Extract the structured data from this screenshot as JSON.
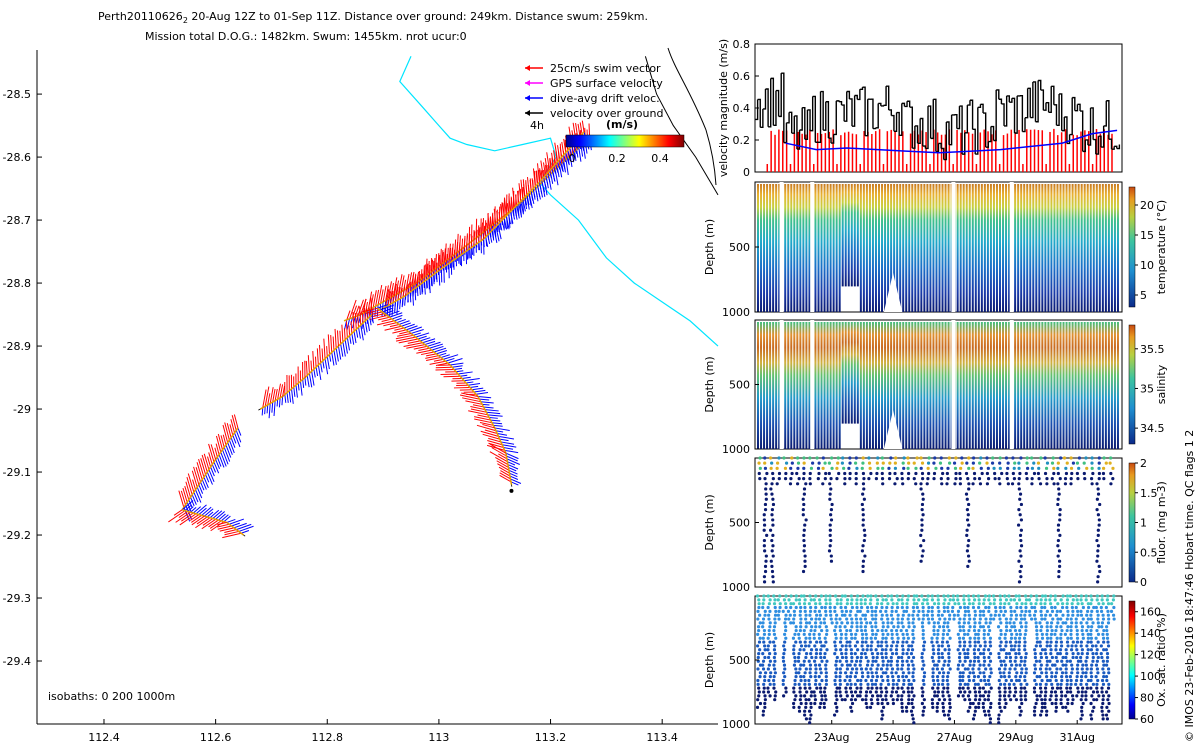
{
  "header": {
    "line1_prefix": "Perth20110626",
    "line1_sub": "2",
    "line1_rest": " 20-Aug 12Z to 01-Sep 11Z. Distance over ground: 249km. Distance swum: 259km.",
    "line2": "Mission total D.O.G.: 1482km. Swum: 1455km. nrot ucur:0"
  },
  "colors": {
    "swim": "#ff0000",
    "gps": "#ff00ff",
    "drift": "#0000ff",
    "ground": "#000000",
    "coast": "#00e5ff",
    "vel_line": "#0000ff",
    "vel_bar": "#ff0000"
  },
  "map_panel": {
    "xticks": [
      "112.4",
      "112.6",
      "112.8",
      "113",
      "113.2",
      "113.4"
    ],
    "yticks": [
      "-28.5",
      "-28.6",
      "-28.7",
      "-28.8",
      "-28.9",
      "-29",
      "-29.1",
      "-29.2",
      "-29.3",
      "-29.4"
    ],
    "legend": [
      {
        "label": "25cm/s swim vector",
        "color": "#ff0000"
      },
      {
        "label": "GPS surface velocity",
        "color": "#ff00ff"
      },
      {
        "label": "dive-avg drift veloc.",
        "color": "#0000ff"
      },
      {
        "label": "velocity over ground",
        "color": "#000000"
      }
    ],
    "time_label": "4h",
    "colorbar_units": "(m/s)",
    "colorbar_ticks": [
      "0",
      "0.2",
      "0.4"
    ],
    "isobath_note": "isobaths: 0   200   1000m"
  },
  "chart_data": [
    {
      "type": "scatter",
      "panel": "glider track map",
      "xlim": [
        112.28,
        113.5
      ],
      "ylim": [
        -29.5,
        -28.43
      ],
      "xticks": [
        112.4,
        112.6,
        112.8,
        113.0,
        113.2,
        113.4
      ],
      "yticks": [
        -28.5,
        -28.6,
        -28.7,
        -28.8,
        -28.9,
        -29.0,
        -29.1,
        -29.2,
        -29.3,
        -29.4
      ],
      "track_segments": [
        {
          "lon": [
            113.27,
            113.22,
            113.15,
            113.05,
            112.96,
            112.9,
            112.86,
            112.83
          ],
          "lat": [
            -28.57,
            -28.61,
            -28.67,
            -28.74,
            -28.8,
            -28.83,
            -28.85,
            -28.86
          ]
        },
        {
          "lon": [
            113.26,
            113.18,
            113.08,
            113.0,
            112.94,
            112.9
          ],
          "lat": [
            -28.56,
            -28.64,
            -28.73,
            -28.78,
            -28.82,
            -28.84
          ]
        },
        {
          "lon": [
            112.89,
            112.95,
            113.02,
            113.07,
            113.1,
            113.12,
            113.13
          ],
          "lat": [
            -28.84,
            -28.88,
            -28.93,
            -28.98,
            -29.03,
            -29.07,
            -29.12
          ]
        },
        {
          "lon": [
            112.88,
            112.82,
            112.76,
            112.72,
            112.68
          ],
          "lat": [
            -28.85,
            -28.9,
            -28.95,
            -28.98,
            -29.0
          ]
        },
        {
          "lon": [
            112.64,
            112.6,
            112.57,
            112.54
          ],
          "lat": [
            -29.03,
            -29.08,
            -29.12,
            -29.16
          ]
        },
        {
          "lon": [
            112.54,
            112.58,
            112.62,
            112.65
          ],
          "lat": [
            -29.16,
            -29.17,
            -29.18,
            -29.2
          ]
        }
      ],
      "coastline": {
        "lon": [
          112.95,
          112.93,
          112.97,
          113.0,
          113.02,
          113.05,
          113.1,
          113.15,
          113.2,
          113.21,
          113.18,
          113.2,
          113.25,
          113.3,
          113.35,
          113.4,
          113.45,
          113.5
        ],
        "lat": [
          -28.44,
          -28.48,
          -28.52,
          -28.55,
          -28.57,
          -28.58,
          -28.59,
          -28.58,
          -28.57,
          -28.6,
          -28.64,
          -28.66,
          -28.7,
          -28.76,
          -28.8,
          -28.83,
          -28.86,
          -28.9
        ]
      },
      "shelf_isobath": {
        "lon": [
          113.37,
          113.39,
          113.42,
          113.46,
          113.5
        ],
        "lat": [
          -28.44,
          -28.5,
          -28.55,
          -28.6,
          -28.66
        ]
      },
      "isobaths_m": [
        0,
        200,
        1000
      ]
    },
    {
      "type": "bar",
      "panel": "velocity magnitude",
      "ylabel": "velocity magnitude (m/s)",
      "ylim": [
        0,
        0.8
      ],
      "yticks": [
        "0",
        "0.2",
        "0.4",
        "0.6",
        "0.8"
      ],
      "days": [
        21.5,
        22.5,
        23.5,
        24.5,
        25.5,
        26.5,
        27.5,
        28.5,
        29.5,
        30.5,
        31.5,
        32.3
      ],
      "ground_speed": [
        0.45,
        0.23,
        0.35,
        0.37,
        0.4,
        0.3,
        0.25,
        0.28,
        0.38,
        0.42,
        0.35,
        0.28
      ],
      "swim_speed": [
        0.25,
        0.25,
        0.25,
        0.25,
        0.25,
        0.25,
        0.25,
        0.25,
        0.25,
        0.25,
        0.25,
        0.25
      ],
      "drift_speed": [
        0.18,
        0.14,
        0.15,
        0.14,
        0.13,
        0.12,
        0.13,
        0.14,
        0.16,
        0.18,
        0.24,
        0.26
      ]
    },
    {
      "type": "heatmap",
      "panel": "temperature",
      "ylabel": "Depth (m)",
      "yticks": [
        "500",
        "1000"
      ],
      "colorbar_label": "temperature (°C)",
      "colorbar_ticks": [
        "5",
        "10",
        "15",
        "20"
      ],
      "clim": [
        3,
        23
      ],
      "max_depth": 1000
    },
    {
      "type": "heatmap",
      "panel": "salinity",
      "ylabel": "Depth (m)",
      "yticks": [
        "500",
        "1000"
      ],
      "colorbar_label": "salinity",
      "colorbar_ticks": [
        "34.5",
        "35",
        "35.5"
      ],
      "clim": [
        34.3,
        35.8
      ],
      "max_depth": 1000
    },
    {
      "type": "scatter",
      "panel": "fluorescence",
      "ylabel": "Depth (m)",
      "yticks": [
        "500",
        "1000"
      ],
      "colorbar_label": "fluor. (mg m-3)",
      "colorbar_ticks": [
        "0",
        "0.5",
        "1",
        "1.5",
        "2"
      ],
      "clim": [
        0,
        2
      ],
      "max_depth": 1000
    },
    {
      "type": "scatter",
      "panel": "oxygen saturation",
      "ylabel": "Depth (m)",
      "yticks": [
        "500",
        "1000"
      ],
      "colorbar_label": "Ox. sat. ratio (%)",
      "colorbar_ticks": [
        "60",
        "80",
        "100",
        "120",
        "140",
        "160"
      ],
      "clim": [
        60,
        170
      ],
      "max_depth": 1000
    }
  ],
  "time_axis": {
    "labels": [
      "23Aug",
      "25Aug",
      "27Aug",
      "29Aug",
      "31Aug"
    ],
    "day_start": 20.5,
    "day_end": 32.46
  },
  "footer_vertical": "© IMOS 23-Feb-2016 18:47:46 Hobart time. QC flags 1  2"
}
